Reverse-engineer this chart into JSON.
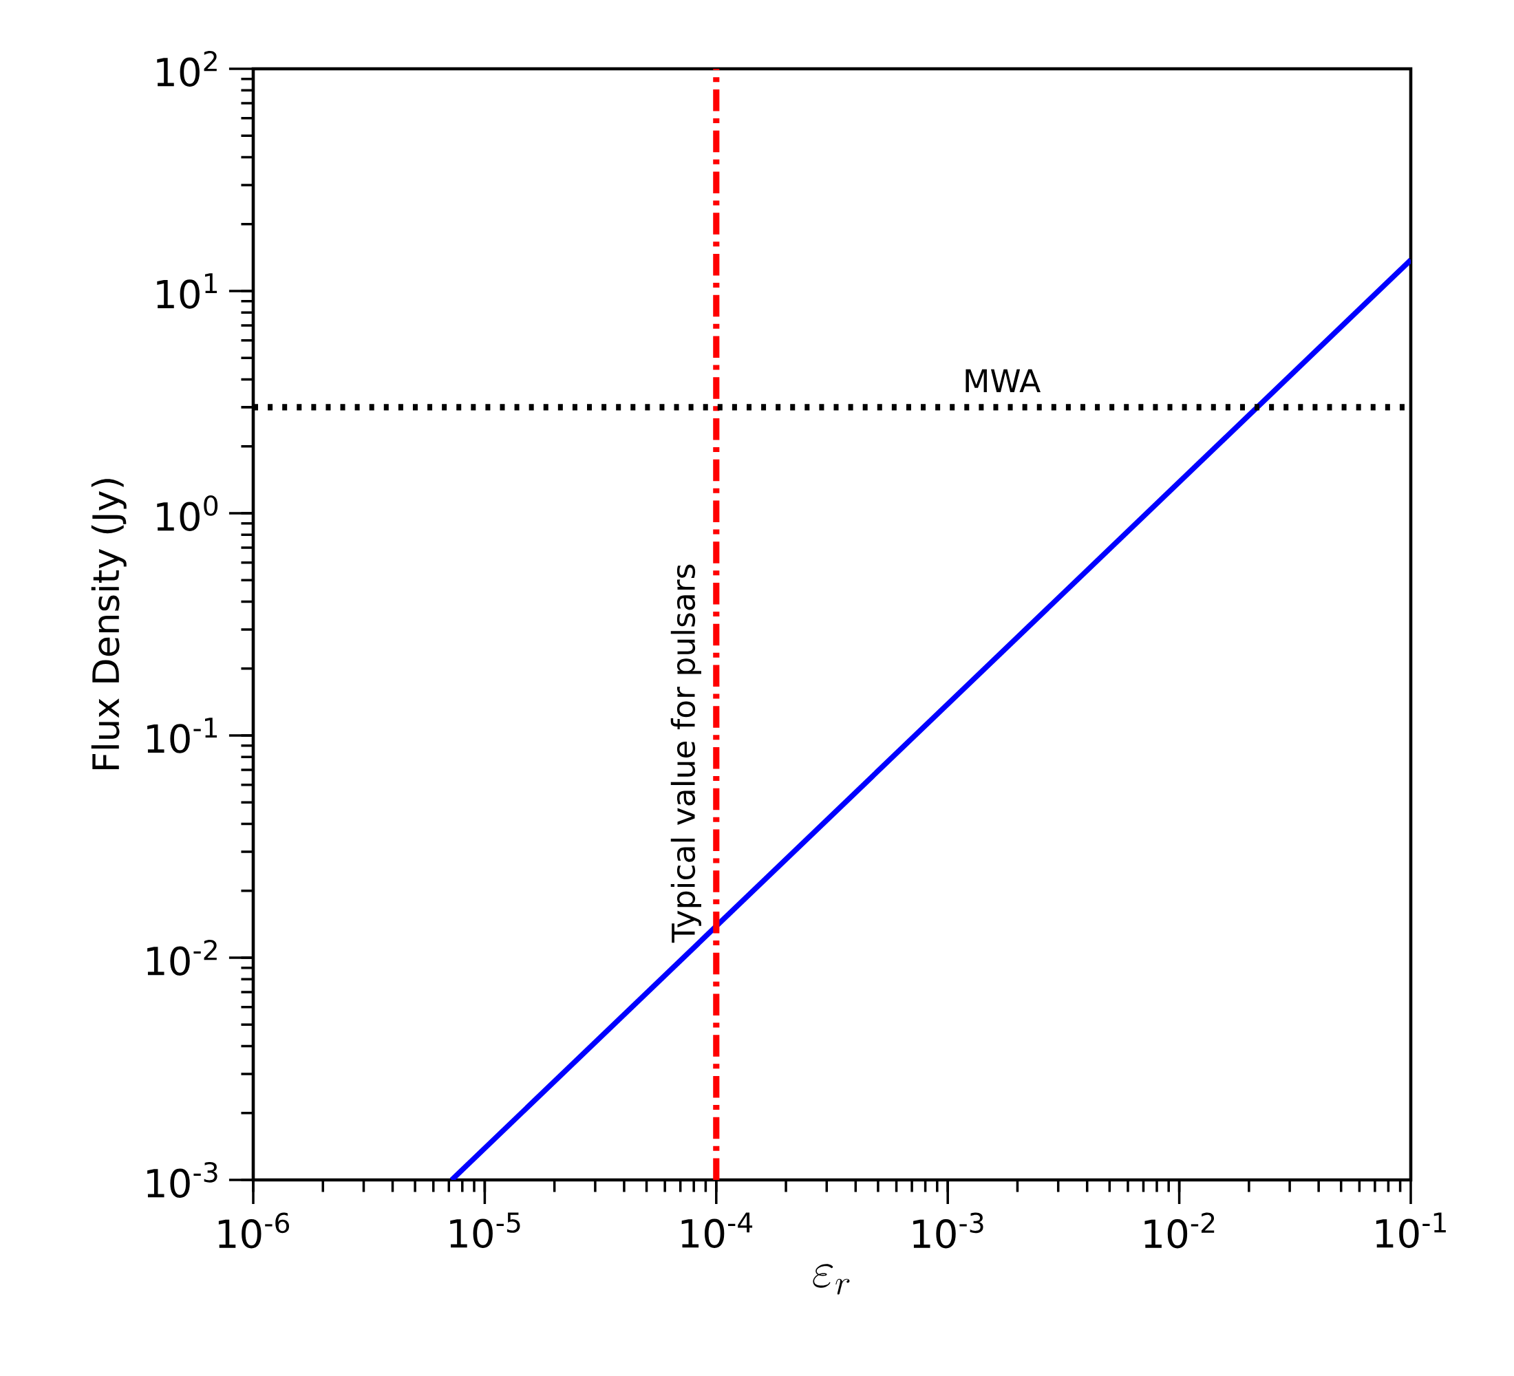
{
  "chart_data": {
    "type": "line",
    "xlabel": "\\varepsilon_r",
    "ylabel": "Flux Density (Jy)",
    "log": "xy",
    "grid": false,
    "xlim": [
      1e-06,
      0.1
    ],
    "ylim": [
      0.001,
      100
    ],
    "xticks": [
      {
        "value": 1e-06,
        "label": "10$^{-6}$"
      },
      {
        "value": 1e-05,
        "label": "10$^{-5}$"
      },
      {
        "value": 0.0001,
        "label": "10$^{-4}$"
      },
      {
        "value": 0.001,
        "label": "10$^{-3}$"
      },
      {
        "value": 0.01,
        "label": "10$^{-2}$"
      },
      {
        "value": 0.1,
        "label": "10$^{-1}$"
      }
    ],
    "yticks": [
      {
        "value": 0.001,
        "label": "10$^{-3}$"
      },
      {
        "value": 0.01,
        "label": "10$^{-2}$"
      },
      {
        "value": 0.1,
        "label": "10$^{-1}$"
      },
      {
        "value": 1,
        "label": "10$^{0}$"
      },
      {
        "value": 10,
        "label": "10$^{1}$"
      },
      {
        "value": 100,
        "label": "10$^{2}$"
      }
    ],
    "series": [
      {
        "color": "#0000ff",
        "x": [
          7.2e-06,
          0.1
        ],
        "values": [
          0.001,
          13.8
        ],
        "line_style": "solid"
      }
    ],
    "ref_lines": [
      {
        "axis": "x",
        "value": 0.0001,
        "label": "Typical value for pulsars",
        "color": "#ff0000",
        "line_style": "dashdot"
      },
      {
        "axis": "y",
        "value": 3,
        "label": "MWA",
        "color": "#000000",
        "line_style": "dotted"
      }
    ]
  }
}
